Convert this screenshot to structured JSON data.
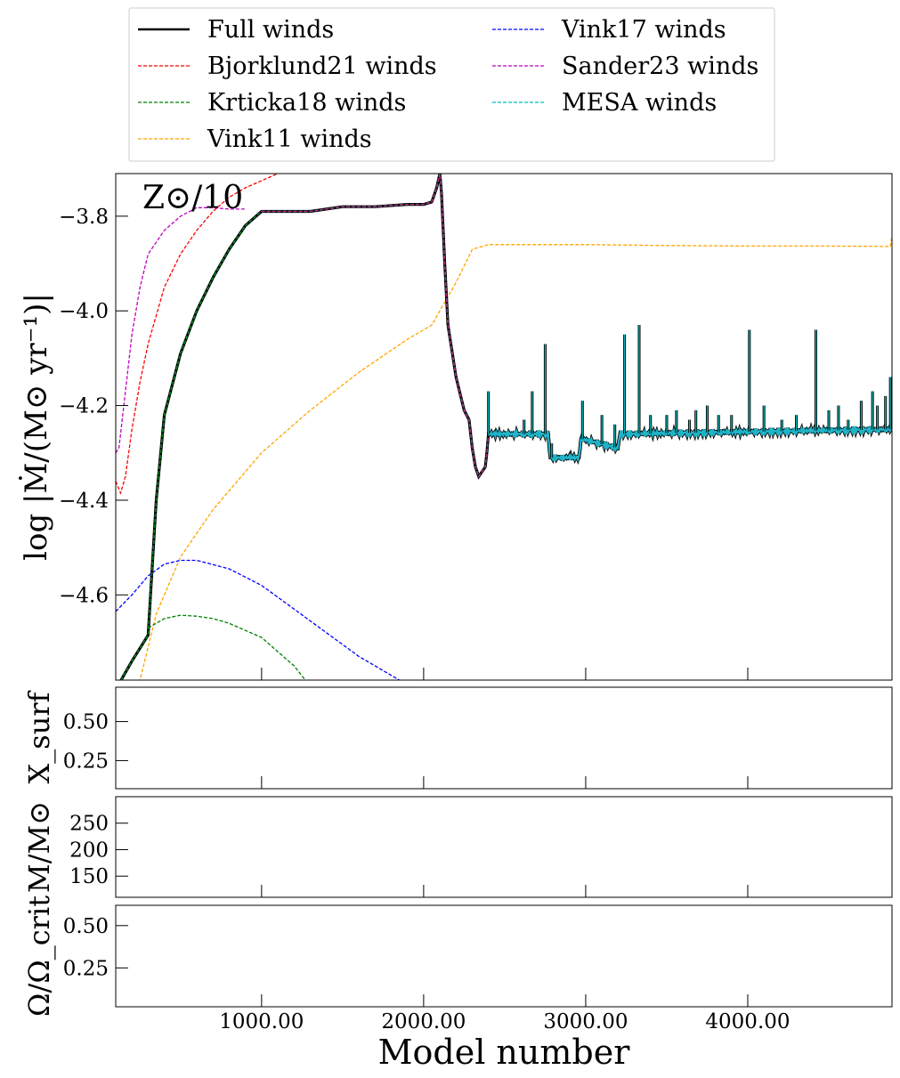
{
  "chart_data": {
    "type": "line",
    "annotation": "Z⊙/10",
    "xlabel": "Model number",
    "legend": {
      "placement": "top",
      "entries": [
        {
          "name": "Full winds",
          "color": "#000000",
          "style": "solid"
        },
        {
          "name": "Bjorklund21 winds",
          "color": "#ff0000",
          "style": "dashed"
        },
        {
          "name": "Krticka18 winds",
          "color": "#008000",
          "style": "dashed"
        },
        {
          "name": "Vink11 winds",
          "color": "#ffa500",
          "style": "dashed"
        },
        {
          "name": "Vink17 winds",
          "color": "#0000ff",
          "style": "dashed"
        },
        {
          "name": "Sander23 winds",
          "color": "#c000c0",
          "style": "dashed"
        },
        {
          "name": "MESA winds",
          "color": "#00bfbf",
          "style": "dashed"
        }
      ]
    },
    "x_ticks": [
      "1000.00",
      "2000.00",
      "3000.00",
      "4000.00"
    ],
    "xlim": [
      100,
      4890
    ],
    "panels": [
      {
        "id": "mdot",
        "ylabel": "log |Ṁ/(M⊙ yr⁻¹)|",
        "ylim": [
          -4.78,
          -3.71
        ],
        "y_ticks": [
          "-3.8",
          "-4.0",
          "-4.2",
          "-4.4",
          "-4.6"
        ],
        "series": [
          {
            "name": "Vink11 winds",
            "color": "#ffa500",
            "x": [
              100,
              250,
              350,
              500,
              700,
              1000,
              1300,
              1600,
              1900,
              2050,
              2100,
              2200,
              2300,
              2400,
              2800,
              3000,
              3500,
              4000,
              4500,
              4880,
              4890
            ],
            "y": [
              -5.2,
              -4.78,
              -4.64,
              -4.52,
              -4.42,
              -4.3,
              -4.21,
              -4.13,
              -4.06,
              -4.03,
              -4.0,
              -3.94,
              -3.87,
              -3.86,
              -3.86,
              -3.86,
              -3.862,
              -3.863,
              -3.863,
              -3.864,
              -3.84
            ]
          },
          {
            "name": "Vink17 winds",
            "color": "#0000ff",
            "x": [
              100,
              200,
              300,
              400,
              500,
              600,
              800,
              1000,
              1200,
              1400,
              1600,
              1850
            ],
            "y": [
              -4.635,
              -4.6,
              -4.56,
              -4.535,
              -4.527,
              -4.527,
              -4.545,
              -4.58,
              -4.63,
              -4.68,
              -4.73,
              -4.78
            ]
          },
          {
            "name": "Krticka18 winds",
            "color": "#008000",
            "x": [
              300,
              400,
              500,
              600,
              700,
              800,
              1000,
              1200,
              1270
            ],
            "y": [
              -4.67,
              -4.65,
              -4.643,
              -4.645,
              -4.65,
              -4.66,
              -4.69,
              -4.75,
              -4.78
            ]
          },
          {
            "name": "Bjorklund21 winds",
            "color": "#ff0000",
            "x": [
              100,
              130,
              160,
              200,
              250,
              300,
              400,
              500,
              600,
              700,
              800,
              900,
              1000,
              1100,
              1200,
              1300,
              1400
            ],
            "y": [
              -4.36,
              -4.385,
              -4.35,
              -4.25,
              -4.15,
              -4.07,
              -3.95,
              -3.88,
              -3.83,
              -3.79,
              -3.76,
              -3.74,
              -3.725,
              -3.71,
              -3.7,
              -3.69,
              -3.68
            ]
          },
          {
            "name": "Sander23 winds",
            "color": "#c000c0",
            "x": [
              100,
              120,
              150,
              200,
              250,
              300,
              400,
              500,
              600,
              700,
              800,
              900
            ],
            "y": [
              -4.3,
              -4.29,
              -4.2,
              -4.05,
              -3.95,
              -3.88,
              -3.83,
              -3.8,
              -3.782,
              -3.782,
              -3.785,
              -3.785
            ]
          },
          {
            "name": "Full winds",
            "color": "#000000",
            "x": [
              100,
              200,
              300,
              350,
              400,
              500,
              600,
              700,
              800,
              900,
              1000,
              1100,
              1300,
              1500,
              1700,
              1900,
              2000,
              2050,
              2080,
              2100,
              2110,
              2130,
              2150,
              2200,
              2250,
              2280,
              2300,
              2320,
              2340,
              2360,
              2380,
              2390,
              2400,
              2770,
              2780,
              2960,
              2970,
              3200,
              3210,
              4890
            ],
            "y": [
              -4.8,
              -4.74,
              -4.685,
              -4.4,
              -4.22,
              -4.09,
              -4.0,
              -3.93,
              -3.87,
              -3.82,
              -3.79,
              -3.79,
              -3.79,
              -3.78,
              -3.78,
              -3.775,
              -3.775,
              -3.77,
              -3.74,
              -3.71,
              -3.75,
              -3.9,
              -4.03,
              -4.14,
              -4.21,
              -4.23,
              -4.29,
              -4.33,
              -4.35,
              -4.34,
              -4.33,
              -4.3,
              -4.26,
              -4.26,
              -4.31,
              -4.31,
              -4.27,
              -4.29,
              -4.26,
              -4.25
            ]
          }
        ],
        "spikes": {
          "series_color": "#00bfbf",
          "x": [
            2400,
            2620,
            2670,
            2750,
            2790,
            2980,
            3100,
            3180,
            3240,
            3330,
            3400,
            3500,
            3560,
            3640,
            3680,
            3750,
            3820,
            3900,
            4010,
            4100,
            4210,
            4300,
            4420,
            4500,
            4560,
            4620,
            4700,
            4770,
            4800,
            4850,
            4880
          ],
          "peak": [
            -4.17,
            -4.23,
            -4.17,
            -4.07,
            -4.28,
            -4.19,
            -4.22,
            -4.24,
            -4.05,
            -4.03,
            -4.22,
            -4.22,
            -4.21,
            -4.23,
            -4.21,
            -4.2,
            -4.22,
            -4.22,
            -4.04,
            -4.2,
            -4.23,
            -4.22,
            -4.04,
            -4.21,
            -4.2,
            -4.23,
            -4.19,
            -4.17,
            -4.2,
            -4.18,
            -4.14
          ]
        }
      },
      {
        "id": "xsurf",
        "ylabel": "X_surf",
        "ylim": [
          0.07,
          0.72
        ],
        "y_ticks": [
          "0.50",
          "0.25"
        ]
      },
      {
        "id": "mass",
        "ylabel": "M/M⊙",
        "ylim": [
          110,
          300
        ],
        "y_ticks": [
          "250",
          "200",
          "150"
        ]
      },
      {
        "id": "omega",
        "ylabel": "Ω/Ω_crit",
        "ylim": [
          0.02,
          0.62
        ],
        "y_ticks": [
          "0.50",
          "0.25"
        ]
      }
    ]
  }
}
